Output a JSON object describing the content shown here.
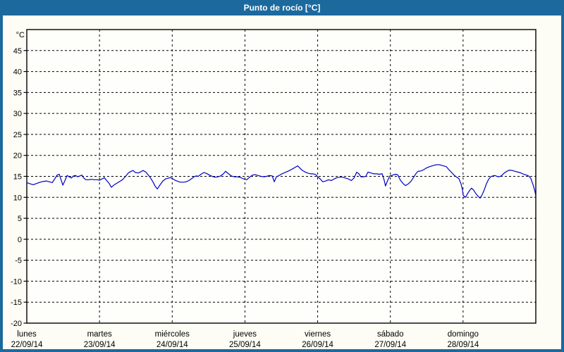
{
  "title": "Punto de rocío [°C]",
  "colors": {
    "titlebar_bg": "#1c699e",
    "frame_border": "#1c699e",
    "content_bg": "#fdfdf5",
    "axis": "#000000",
    "grid": "#000000",
    "text": "#000000",
    "line": "#0000c8"
  },
  "chart_data": {
    "type": "line",
    "title": "Punto de rocío [°C]",
    "ylabel": "°C",
    "ylim": [
      -20,
      50
    ],
    "y_ticks": [
      45,
      40,
      35,
      30,
      25,
      20,
      15,
      10,
      5,
      0,
      -5,
      -10,
      -15,
      -20
    ],
    "x_unit": "hours",
    "xlim": [
      0,
      168
    ],
    "grid": "dashed",
    "legend_position": "none",
    "days": [
      {
        "name": "lunes",
        "date": "22/09/14"
      },
      {
        "name": "martes",
        "date": "23/09/14"
      },
      {
        "name": "miércoles",
        "date": "24/09/14"
      },
      {
        "name": "jueves",
        "date": "25/09/14"
      },
      {
        "name": "viernes",
        "date": "26/09/14"
      },
      {
        "name": "sábado",
        "date": "27/09/14"
      },
      {
        "name": "domingo",
        "date": "28/09/14"
      }
    ],
    "series": [
      {
        "name": "Punto de rocío",
        "color": "#0000c8",
        "points": [
          [
            0,
            13.5
          ],
          [
            1.2,
            13.2
          ],
          [
            2.1,
            13.0
          ],
          [
            3.3,
            13.3
          ],
          [
            4.4,
            13.6
          ],
          [
            5.6,
            13.8
          ],
          [
            6.5,
            13.9
          ],
          [
            7.4,
            13.7
          ],
          [
            8.4,
            13.5
          ],
          [
            9.3,
            14.5
          ],
          [
            10,
            15.3
          ],
          [
            10.7,
            15.5
          ],
          [
            11.4,
            14.0
          ],
          [
            11.9,
            12.9
          ],
          [
            12.6,
            14.0
          ],
          [
            13.3,
            15.2
          ],
          [
            14,
            14.9
          ],
          [
            14.7,
            14.6
          ],
          [
            15.4,
            15.1
          ],
          [
            16.1,
            15.2
          ],
          [
            16.8,
            14.9
          ],
          [
            17.5,
            15.1
          ],
          [
            18.2,
            15.3
          ],
          [
            18.8,
            14.6
          ],
          [
            19.5,
            14.2
          ],
          [
            20.5,
            14.2
          ],
          [
            21.4,
            14.3
          ],
          [
            22.3,
            14.2
          ],
          [
            23.3,
            14.2
          ],
          [
            24,
            14.1
          ],
          [
            24.9,
            14.4
          ],
          [
            25.6,
            14.7
          ],
          [
            26.5,
            13.9
          ],
          [
            27.2,
            13.3
          ],
          [
            27.9,
            12.4
          ],
          [
            28.9,
            13.0
          ],
          [
            29.8,
            13.4
          ],
          [
            30.7,
            13.8
          ],
          [
            31.6,
            14.2
          ],
          [
            32.6,
            15.0
          ],
          [
            33.5,
            15.8
          ],
          [
            34.4,
            16.2
          ],
          [
            35.1,
            16.4
          ],
          [
            35.8,
            15.9
          ],
          [
            36.8,
            15.8
          ],
          [
            37.7,
            16.1
          ],
          [
            38.4,
            16.4
          ],
          [
            39.3,
            16.0
          ],
          [
            40,
            15.4
          ],
          [
            40.7,
            14.8
          ],
          [
            41.7,
            13.6
          ],
          [
            42.4,
            12.6
          ],
          [
            43.1,
            12.0
          ],
          [
            44,
            13.0
          ],
          [
            44.9,
            13.9
          ],
          [
            45.8,
            14.4
          ],
          [
            46.8,
            14.6
          ],
          [
            47.5,
            14.7
          ],
          [
            48,
            14.5
          ],
          [
            48.9,
            14.1
          ],
          [
            49.8,
            13.8
          ],
          [
            50.7,
            13.6
          ],
          [
            51.7,
            13.6
          ],
          [
            52.6,
            13.7
          ],
          [
            53.5,
            14.0
          ],
          [
            54.5,
            14.5
          ],
          [
            55.2,
            14.9
          ],
          [
            55.9,
            15.1
          ],
          [
            56.6,
            15.0
          ],
          [
            57.5,
            15.5
          ],
          [
            58.4,
            15.9
          ],
          [
            59.3,
            15.7
          ],
          [
            60.3,
            15.3
          ],
          [
            61.2,
            15.0
          ],
          [
            62.1,
            14.8
          ],
          [
            63.1,
            14.9
          ],
          [
            64,
            15.1
          ],
          [
            64.9,
            15.6
          ],
          [
            65.6,
            16.2
          ],
          [
            66.6,
            15.6
          ],
          [
            67.5,
            15.1
          ],
          [
            68.4,
            14.9
          ],
          [
            69.3,
            14.9
          ],
          [
            70.3,
            14.8
          ],
          [
            71.2,
            14.5
          ],
          [
            71.9,
            14.3
          ],
          [
            72.6,
            14.2
          ],
          [
            73.5,
            14.8
          ],
          [
            74.5,
            15.3
          ],
          [
            75.4,
            15.4
          ],
          [
            76.3,
            15.2
          ],
          [
            77.3,
            15.0
          ],
          [
            78.2,
            14.9
          ],
          [
            79.1,
            15.0
          ],
          [
            80.1,
            15.2
          ],
          [
            81,
            15.1
          ],
          [
            81.7,
            13.7
          ],
          [
            82.4,
            14.9
          ],
          [
            83.3,
            15.2
          ],
          [
            84.2,
            15.6
          ],
          [
            85.2,
            15.9
          ],
          [
            86.1,
            16.2
          ],
          [
            87,
            16.5
          ],
          [
            88,
            16.9
          ],
          [
            88.7,
            17.2
          ],
          [
            89.4,
            17.5
          ],
          [
            90.1,
            17.0
          ],
          [
            90.8,
            16.5
          ],
          [
            91.7,
            16.1
          ],
          [
            92.6,
            15.8
          ],
          [
            93.6,
            15.6
          ],
          [
            94.5,
            15.6
          ],
          [
            95.4,
            15.4
          ],
          [
            95.9,
            15.0
          ],
          [
            96.8,
            14.4
          ],
          [
            97.7,
            13.7
          ],
          [
            98.7,
            13.9
          ],
          [
            99.6,
            14.2
          ],
          [
            100.5,
            14.0
          ],
          [
            101.5,
            14.4
          ],
          [
            102.4,
            14.7
          ],
          [
            103.3,
            14.8
          ],
          [
            104.3,
            14.8
          ],
          [
            105.2,
            14.6
          ],
          [
            106.1,
            14.4
          ],
          [
            107.1,
            14.0
          ],
          [
            108,
            14.6
          ],
          [
            108.9,
            16.0
          ],
          [
            109.6,
            15.6
          ],
          [
            110.3,
            14.9
          ],
          [
            111.2,
            14.9
          ],
          [
            111.9,
            15.0
          ],
          [
            112.6,
            16.0
          ],
          [
            113.6,
            15.8
          ],
          [
            114.5,
            15.6
          ],
          [
            115.4,
            15.6
          ],
          [
            116.4,
            15.5
          ],
          [
            117.3,
            15.6
          ],
          [
            118,
            14.0
          ],
          [
            118.4,
            12.7
          ],
          [
            119.1,
            14.0
          ],
          [
            119.8,
            15.1
          ],
          [
            120.8,
            15.3
          ],
          [
            121.7,
            15.5
          ],
          [
            122.4,
            15.4
          ],
          [
            123.3,
            14.1
          ],
          [
            124.3,
            13.2
          ],
          [
            125,
            12.8
          ],
          [
            125.9,
            13.2
          ],
          [
            126.8,
            13.8
          ],
          [
            127.7,
            14.8
          ],
          [
            128.4,
            15.6
          ],
          [
            129.1,
            16.2
          ],
          [
            130.1,
            16.3
          ],
          [
            131,
            16.6
          ],
          [
            131.9,
            17.0
          ],
          [
            132.9,
            17.3
          ],
          [
            133.8,
            17.5
          ],
          [
            134.7,
            17.7
          ],
          [
            135.7,
            17.8
          ],
          [
            136.6,
            17.7
          ],
          [
            137.5,
            17.5
          ],
          [
            138.5,
            17.3
          ],
          [
            139.2,
            16.7
          ],
          [
            140.1,
            16.0
          ],
          [
            141,
            15.3
          ],
          [
            141.9,
            14.8
          ],
          [
            142.6,
            14.5
          ],
          [
            143.3,
            13.3
          ],
          [
            143.8,
            11.8
          ],
          [
            144,
            10.5
          ],
          [
            144.8,
            10.0
          ],
          [
            145.4,
            10.8
          ],
          [
            146.1,
            11.6
          ],
          [
            146.8,
            12.2
          ],
          [
            147.5,
            11.7
          ],
          [
            148.2,
            10.9
          ],
          [
            148.9,
            10.3
          ],
          [
            149.6,
            9.8
          ],
          [
            150.3,
            10.6
          ],
          [
            151,
            11.8
          ],
          [
            151.7,
            13.2
          ],
          [
            152.4,
            14.3
          ],
          [
            153.1,
            14.9
          ],
          [
            153.8,
            15.1
          ],
          [
            154.5,
            15.2
          ],
          [
            155.2,
            15.0
          ],
          [
            155.9,
            14.9
          ],
          [
            156.6,
            15.1
          ],
          [
            157.3,
            15.6
          ],
          [
            158,
            16.0
          ],
          [
            158.7,
            16.3
          ],
          [
            159.4,
            16.5
          ],
          [
            160.3,
            16.4
          ],
          [
            161.2,
            16.2
          ],
          [
            162.2,
            16.0
          ],
          [
            163.1,
            15.8
          ],
          [
            164,
            15.5
          ],
          [
            164.9,
            15.3
          ],
          [
            165.6,
            15.1
          ],
          [
            166.3,
            14.6
          ],
          [
            167,
            13.2
          ],
          [
            167.7,
            11.5
          ],
          [
            168,
            10.3
          ]
        ]
      }
    ]
  }
}
